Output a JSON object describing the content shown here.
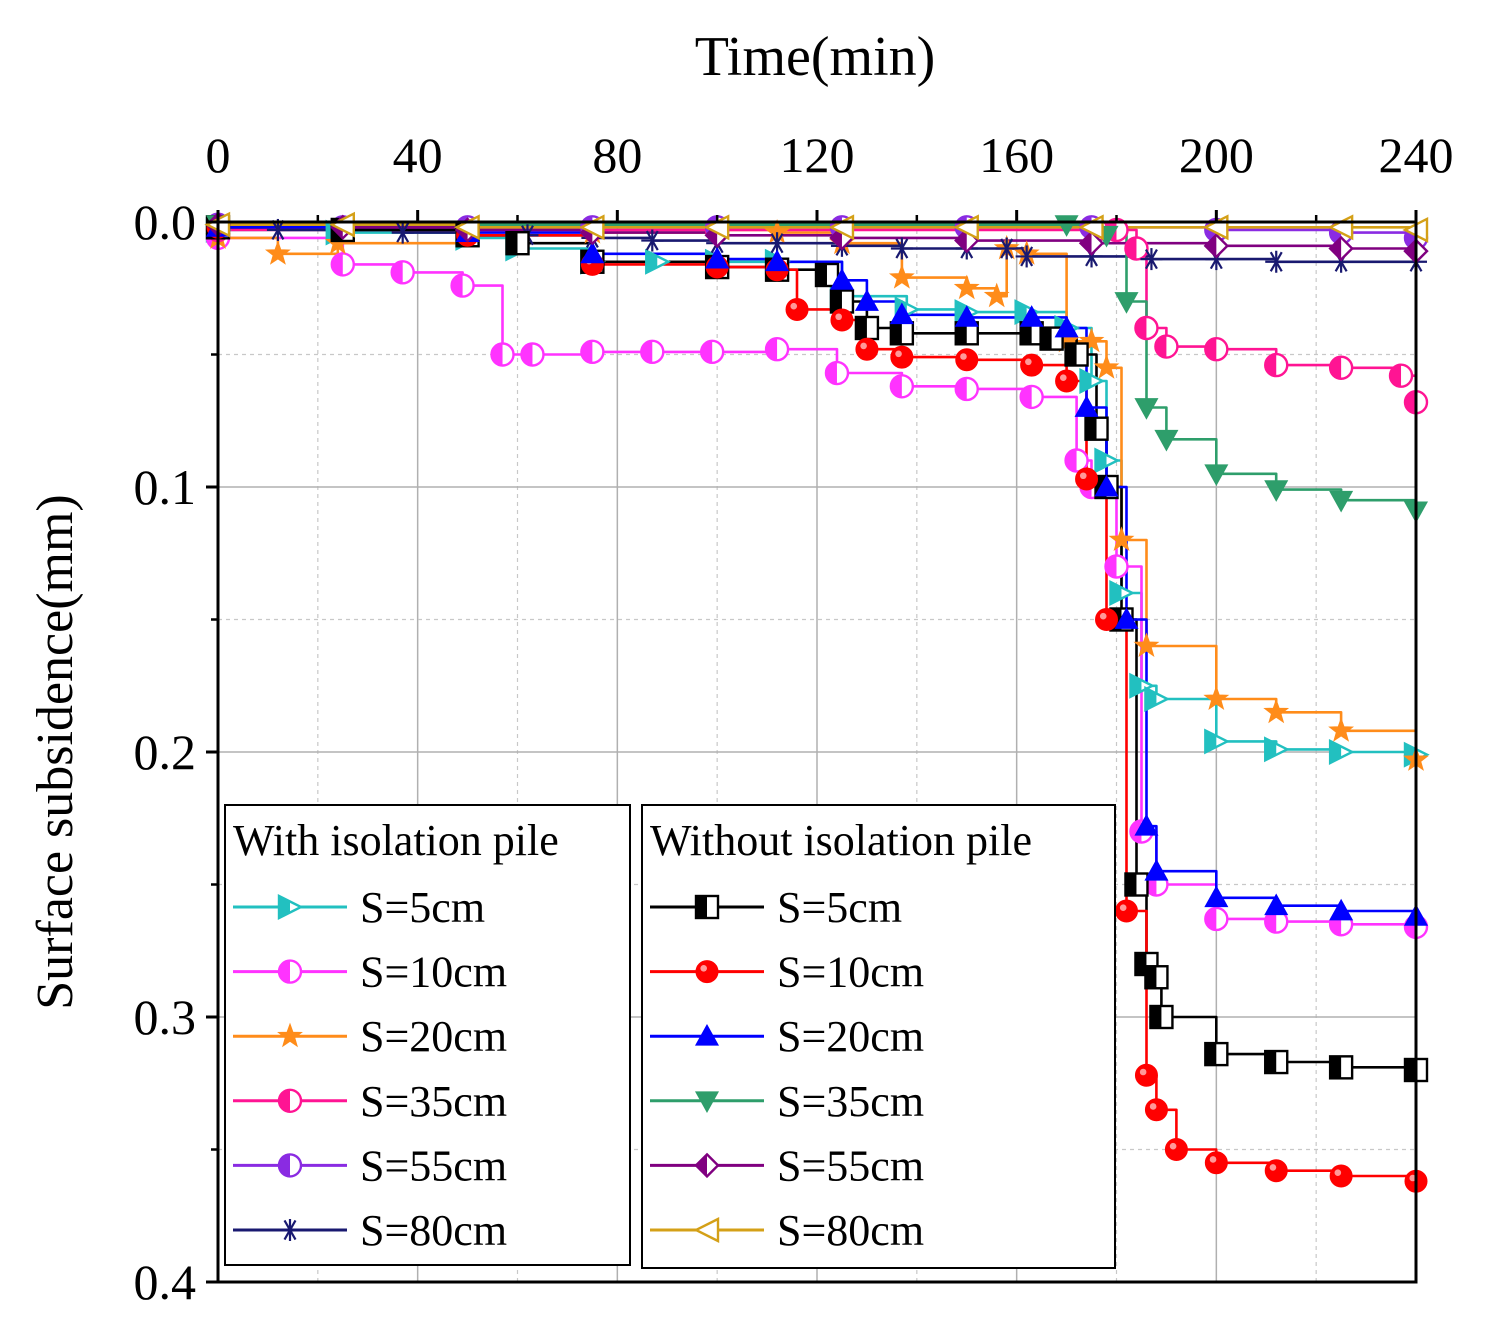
{
  "chart_data": {
    "type": "line",
    "title": "",
    "xlabel": "Time(min)",
    "ylabel": "Surface subsidence(mm)",
    "xlim": [
      0,
      240
    ],
    "ylim": [
      0.4,
      0.0
    ],
    "y_inverted": true,
    "x_ticks": [
      0,
      40,
      80,
      120,
      160,
      200,
      240
    ],
    "y_ticks": [
      0.0,
      0.1,
      0.2,
      0.3,
      0.4
    ],
    "x_tick_labels": [
      "0",
      "40",
      "80",
      "120",
      "160",
      "200",
      "240"
    ],
    "y_tick_labels": [
      "0.0",
      "0.1",
      "0.2",
      "0.3",
      "0.4"
    ],
    "grid": true,
    "x_axis_position": "top",
    "legend_groups": [
      {
        "title": "With isolation pile",
        "placement": "bottom-left"
      },
      {
        "title": "Without isolation pile",
        "placement": "bottom-center"
      }
    ],
    "series": [
      {
        "group": "With isolation pile",
        "name": "S=5cm",
        "color": "#22c0c0",
        "marker": "tri-right-half",
        "x": [
          0,
          24,
          50,
          60,
          75,
          88,
          100,
          112,
          125,
          138,
          150,
          162,
          170,
          175,
          178,
          181,
          185,
          188,
          200,
          212,
          225,
          240
        ],
        "y": [
          0.003,
          0.004,
          0.006,
          0.01,
          0.015,
          0.015,
          0.015,
          0.015,
          0.028,
          0.033,
          0.034,
          0.034,
          0.04,
          0.06,
          0.09,
          0.14,
          0.175,
          0.18,
          0.196,
          0.199,
          0.2,
          0.201
        ]
      },
      {
        "group": "With isolation pile",
        "name": "S=10cm",
        "color": "#ff33ff",
        "marker": "circle-half",
        "x": [
          0,
          25,
          37,
          49,
          57,
          63,
          75,
          87,
          99,
          112,
          124,
          137,
          150,
          163,
          172,
          175,
          180,
          185,
          188,
          200,
          212,
          225,
          240
        ],
        "y": [
          0.006,
          0.016,
          0.019,
          0.024,
          0.05,
          0.05,
          0.049,
          0.049,
          0.049,
          0.048,
          0.057,
          0.062,
          0.063,
          0.066,
          0.09,
          0.1,
          0.13,
          0.23,
          0.25,
          0.263,
          0.264,
          0.265,
          0.266
        ]
      },
      {
        "group": "With isolation pile",
        "name": "S=20cm",
        "color": "#ff8c1a",
        "marker": "star",
        "x": [
          0,
          12,
          24,
          50,
          75,
          100,
          112,
          125,
          137,
          150,
          156,
          158,
          162,
          170,
          175,
          178,
          181,
          186,
          200,
          212,
          225,
          240
        ],
        "y": [
          0.006,
          0.012,
          0.008,
          0.005,
          0.004,
          0.003,
          0.004,
          0.008,
          0.021,
          0.025,
          0.028,
          0.01,
          0.012,
          0.045,
          0.045,
          0.055,
          0.12,
          0.16,
          0.18,
          0.185,
          0.192,
          0.203
        ]
      },
      {
        "group": "With isolation pile",
        "name": "S=35cm",
        "color": "#ff1493",
        "marker": "circle-half",
        "x": [
          0,
          100,
          176,
          180,
          184,
          186,
          190,
          200,
          212,
          225,
          237,
          240
        ],
        "y": [
          0.003,
          0.003,
          0.003,
          0.003,
          0.01,
          0.04,
          0.047,
          0.048,
          0.054,
          0.055,
          0.058,
          0.068
        ]
      },
      {
        "group": "With isolation pile",
        "name": "S=55cm",
        "color": "#8a2be2",
        "marker": "circle-half",
        "x": [
          0,
          25,
          50,
          75,
          100,
          125,
          150,
          175,
          200,
          225,
          240
        ],
        "y": [
          0.001,
          0.002,
          0.002,
          0.002,
          0.002,
          0.002,
          0.002,
          0.002,
          0.003,
          0.004,
          0.006
        ]
      },
      {
        "group": "With isolation pile",
        "name": "S=80cm",
        "color": "#191970",
        "marker": "asterisk",
        "x": [
          0,
          12,
          25,
          37,
          50,
          62,
          75,
          87,
          100,
          112,
          125,
          137,
          150,
          158,
          162,
          175,
          187,
          200,
          212,
          225,
          240
        ],
        "y": [
          0.002,
          0.003,
          0.003,
          0.004,
          0.005,
          0.005,
          0.006,
          0.007,
          0.008,
          0.008,
          0.009,
          0.01,
          0.01,
          0.01,
          0.013,
          0.013,
          0.014,
          0.014,
          0.015,
          0.015,
          0.015
        ]
      },
      {
        "group": "Without isolation pile",
        "name": "S=5cm",
        "color": "#000000",
        "marker": "square-half",
        "x": [
          0,
          25,
          50,
          60,
          75,
          100,
          112,
          122,
          125,
          130,
          137,
          150,
          163,
          167,
          172,
          176,
          178,
          181,
          184,
          186,
          188,
          189,
          200,
          212,
          225,
          240
        ],
        "y": [
          0.002,
          0.003,
          0.005,
          0.008,
          0.015,
          0.017,
          0.018,
          0.02,
          0.03,
          0.04,
          0.042,
          0.042,
          0.042,
          0.044,
          0.05,
          0.078,
          0.1,
          0.15,
          0.25,
          0.28,
          0.285,
          0.3,
          0.314,
          0.317,
          0.319,
          0.32
        ]
      },
      {
        "group": "Without isolation pile",
        "name": "S=10cm",
        "color": "#ff0000",
        "marker": "ball",
        "x": [
          0,
          50,
          75,
          100,
          112,
          116,
          125,
          130,
          137,
          150,
          163,
          170,
          174,
          178,
          182,
          186,
          188,
          192,
          200,
          212,
          225,
          240
        ],
        "y": [
          0.002,
          0.005,
          0.016,
          0.017,
          0.018,
          0.033,
          0.037,
          0.048,
          0.051,
          0.052,
          0.054,
          0.06,
          0.097,
          0.15,
          0.26,
          0.322,
          0.335,
          0.35,
          0.355,
          0.358,
          0.36,
          0.362
        ]
      },
      {
        "group": "Without isolation pile",
        "name": "S=20cm",
        "color": "#0000ff",
        "marker": "triangle-up",
        "x": [
          0,
          50,
          75,
          100,
          112,
          125,
          130,
          137,
          150,
          163,
          170,
          174,
          178,
          182,
          186,
          188,
          200,
          212,
          225,
          240
        ],
        "y": [
          0.002,
          0.004,
          0.012,
          0.014,
          0.015,
          0.022,
          0.03,
          0.035,
          0.036,
          0.036,
          0.04,
          0.07,
          0.1,
          0.15,
          0.228,
          0.245,
          0.255,
          0.258,
          0.26,
          0.262
        ]
      },
      {
        "group": "Without isolation pile",
        "name": "S=35cm",
        "color": "#2e9e6b",
        "marker": "triangle-down",
        "x": [
          0,
          170,
          178,
          182,
          186,
          190,
          200,
          212,
          225,
          240
        ],
        "y": [
          0.001,
          0.001,
          0.005,
          0.03,
          0.07,
          0.082,
          0.095,
          0.101,
          0.105,
          0.109
        ]
      },
      {
        "group": "Without isolation pile",
        "name": "S=55cm",
        "color": "#800080",
        "marker": "diamond-half",
        "x": [
          0,
          25,
          50,
          75,
          100,
          125,
          150,
          175,
          200,
          225,
          240
        ],
        "y": [
          0.001,
          0.002,
          0.003,
          0.004,
          0.005,
          0.006,
          0.007,
          0.008,
          0.009,
          0.01,
          0.011
        ]
      },
      {
        "group": "Without isolation pile",
        "name": "S=80cm",
        "color": "#d4a017",
        "marker": "tri-left",
        "x": [
          0,
          25,
          50,
          75,
          100,
          125,
          150,
          175,
          200,
          225,
          240
        ],
        "y": [
          0.001,
          0.001,
          0.002,
          0.002,
          0.002,
          0.002,
          0.002,
          0.002,
          0.002,
          0.002,
          0.003
        ]
      }
    ]
  }
}
